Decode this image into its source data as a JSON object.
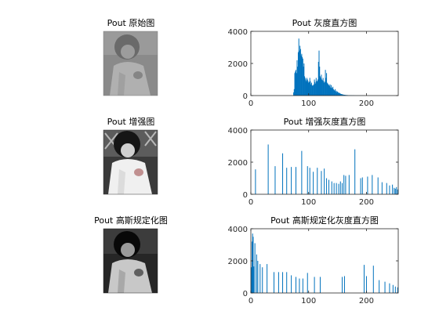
{
  "figure": {
    "images": [
      {
        "title": "Pout 原始图",
        "style": "low-contrast"
      },
      {
        "title": "Pout 增强图",
        "style": "equalized"
      },
      {
        "title": "Pout 高斯规定化图",
        "style": "gaussian"
      }
    ],
    "bar_color": "#0072bd"
  },
  "chart_data": [
    {
      "type": "bar",
      "title": "Pout 灰度直方图",
      "xlabel": "",
      "ylabel": "",
      "xlim": [
        0,
        255
      ],
      "ylim": [
        0,
        4000
      ],
      "xticks": [
        0,
        100,
        200
      ],
      "yticks": [
        0,
        2000,
        4000
      ],
      "grid": false,
      "x": [
        74,
        75,
        76,
        77,
        78,
        79,
        80,
        81,
        82,
        83,
        84,
        85,
        86,
        87,
        88,
        89,
        90,
        91,
        92,
        93,
        94,
        95,
        96,
        97,
        98,
        99,
        100,
        101,
        102,
        103,
        104,
        105,
        106,
        107,
        108,
        109,
        110,
        111,
        112,
        113,
        114,
        115,
        116,
        117,
        118,
        119,
        120,
        121,
        122,
        123,
        124,
        125,
        126,
        127,
        128,
        129,
        130,
        131,
        132,
        133,
        134,
        135,
        136,
        137,
        138,
        139,
        140,
        141,
        142,
        143,
        144,
        145,
        146,
        147,
        148,
        149,
        150,
        151,
        152,
        153,
        154,
        155,
        156,
        157,
        158,
        159,
        160,
        161,
        162,
        163,
        164,
        165,
        166,
        167,
        168,
        169,
        170,
        171,
        172,
        173,
        174,
        175,
        176,
        177,
        178,
        179,
        180,
        181,
        182,
        183,
        184,
        185,
        186,
        187,
        188,
        189,
        190,
        191,
        192,
        193,
        194,
        195,
        196
      ],
      "values": [
        200,
        400,
        1400,
        1500,
        1600,
        1400,
        2200,
        1800,
        2700,
        3550,
        2800,
        3100,
        2900,
        2500,
        2600,
        2400,
        2300,
        1800,
        2000,
        1200,
        1100,
        1000,
        900,
        1100,
        1000,
        900,
        800,
        850,
        1100,
        900,
        700,
        800,
        650,
        600,
        650,
        700,
        1000,
        850,
        750,
        1100,
        900,
        900,
        1000,
        2100,
        2800,
        1800,
        1200,
        1100,
        1300,
        1000,
        950,
        1100,
        900,
        800,
        850,
        1600,
        1100,
        1400,
        800,
        750,
        700,
        650,
        600,
        700,
        500,
        650,
        500,
        450,
        550,
        400,
        350,
        300,
        400,
        250,
        300,
        200,
        250,
        200,
        150,
        180,
        140,
        120,
        100,
        90,
        80,
        70,
        60,
        50,
        50,
        40,
        40,
        30,
        30,
        30,
        25,
        20,
        20,
        20,
        15,
        15,
        15,
        10,
        10,
        10,
        10,
        10,
        5,
        5,
        5,
        5,
        5,
        5,
        5,
        5,
        5,
        5,
        5,
        5,
        5,
        5,
        5,
        5,
        5
      ]
    },
    {
      "type": "bar",
      "title": "Pout 增强灰度直方图",
      "xlabel": "",
      "ylabel": "",
      "xlim": [
        0,
        255
      ],
      "ylim": [
        0,
        4000
      ],
      "xticks": [
        0,
        100,
        200
      ],
      "yticks": [
        0,
        2000,
        4000
      ],
      "grid": false,
      "x": [
        8,
        30,
        42,
        55,
        62,
        70,
        78,
        88,
        98,
        102,
        108,
        115,
        122,
        127,
        131,
        135,
        140,
        144,
        148,
        152,
        155,
        158,
        161,
        164,
        170,
        180,
        190,
        193,
        202,
        210,
        220,
        227,
        235,
        240,
        245,
        248,
        250,
        252,
        254
      ],
      "values": [
        1550,
        3100,
        1750,
        2550,
        1650,
        1700,
        1700,
        2700,
        1750,
        1650,
        1400,
        1650,
        1450,
        1600,
        1000,
        900,
        800,
        700,
        700,
        650,
        800,
        700,
        1200,
        1150,
        1200,
        2800,
        1000,
        1050,
        1100,
        1200,
        1050,
        750,
        700,
        550,
        600,
        400,
        350,
        450,
        300
      ]
    },
    {
      "type": "bar",
      "title": "Pout 高斯规定化灰度直方图",
      "xlabel": "",
      "ylabel": "",
      "xlim": [
        0,
        255
      ],
      "ylim": [
        0,
        4000
      ],
      "xticks": [
        0,
        100,
        200
      ],
      "yticks": [
        0,
        2000,
        4000
      ],
      "grid": false,
      "x": [
        1,
        2,
        3,
        4,
        5,
        7,
        10,
        12,
        16,
        20,
        28,
        40,
        48,
        55,
        62,
        70,
        78,
        84,
        90,
        98,
        110,
        120,
        158,
        162,
        196,
        200,
        212,
        222,
        232,
        240,
        246,
        250,
        254
      ],
      "values": [
        1600,
        3200,
        3700,
        3500,
        1650,
        3100,
        2400,
        2000,
        1800,
        1600,
        1800,
        1300,
        1300,
        1300,
        1300,
        1100,
        1000,
        900,
        900,
        1250,
        1000,
        1000,
        1000,
        1050,
        1750,
        1050,
        1700,
        800,
        700,
        600,
        500,
        400,
        350
      ]
    }
  ]
}
